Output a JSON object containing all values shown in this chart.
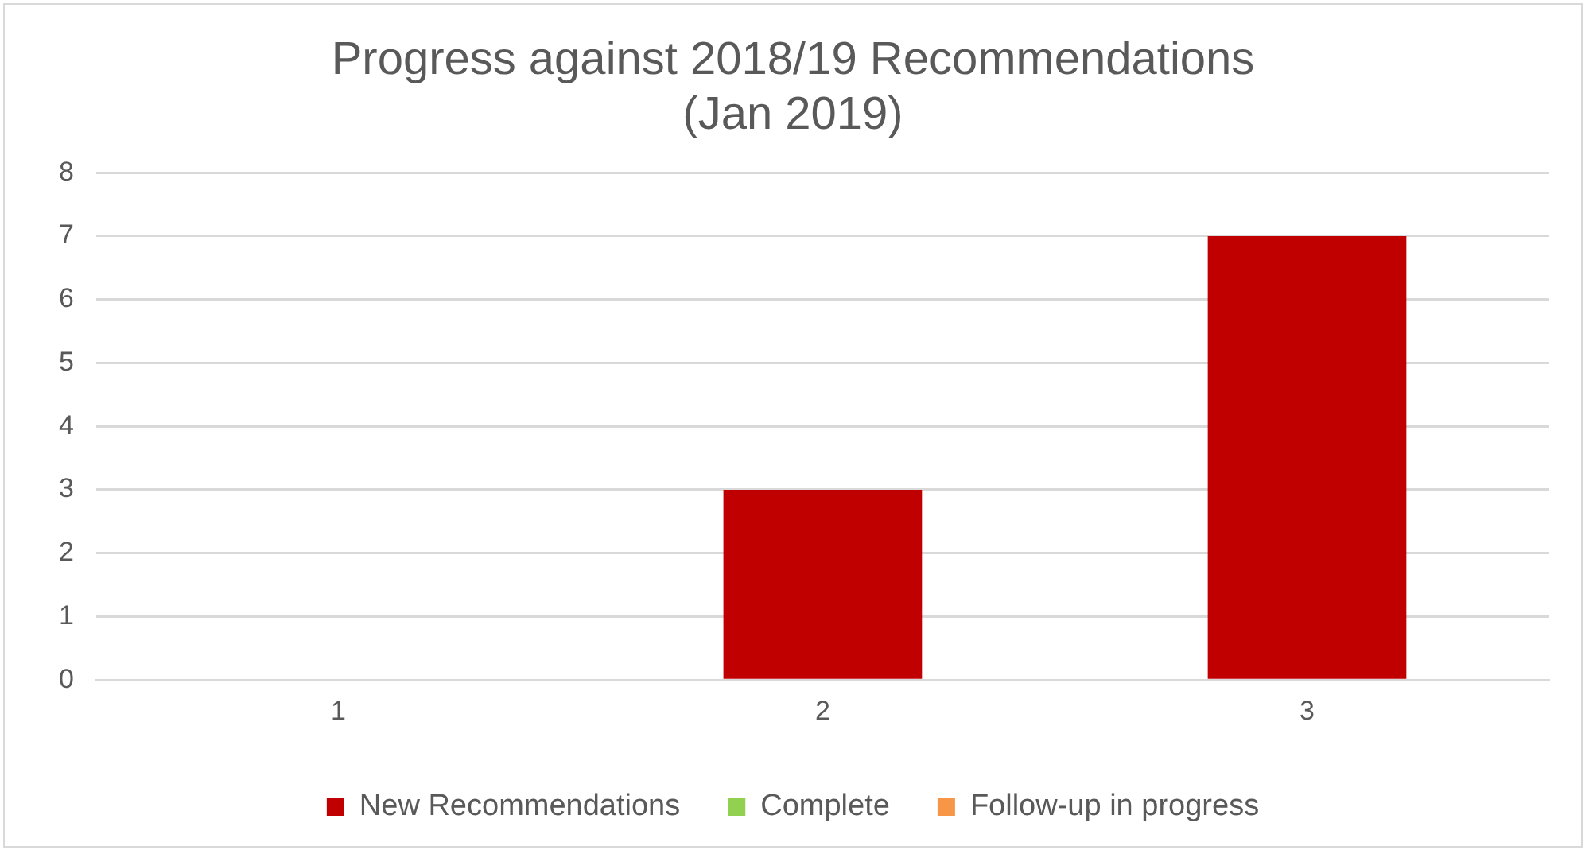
{
  "chart_data": {
    "type": "bar",
    "title": "Progress against 2018/19 Recommendations\n(Jan 2019)",
    "categories": [
      "1",
      "2",
      "3"
    ],
    "series": [
      {
        "name": "New Recommendations",
        "color": "#c00000",
        "values": [
          0,
          3,
          7
        ]
      },
      {
        "name": "Complete",
        "color": "#92d050",
        "values": [
          0,
          0,
          0
        ]
      },
      {
        "name": "Follow-up in progress",
        "color": "#f79646",
        "values": [
          0,
          0,
          0
        ]
      }
    ],
    "stacked": true,
    "ylim": [
      0,
      8
    ],
    "yticks": [
      0,
      1,
      2,
      3,
      4,
      5,
      6,
      7,
      8
    ],
    "grid": "y",
    "legend": "bottom"
  }
}
